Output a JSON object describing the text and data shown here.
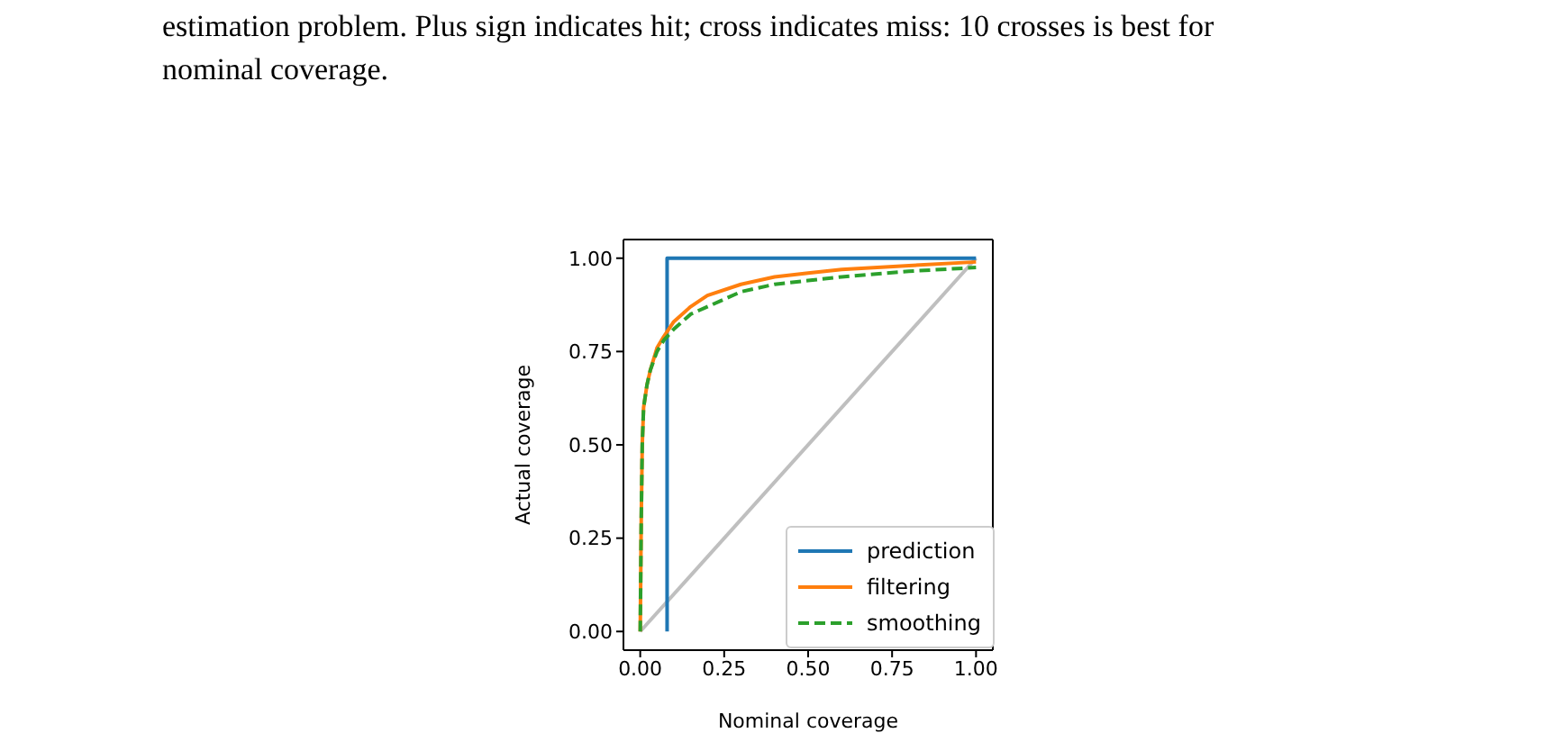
{
  "chart_data": {
    "type": "line",
    "xlabel": "Nominal coverage",
    "ylabel": "Actual coverage",
    "annotations": [
      "estimation problem. Plus sign indicates hit; cross indicates miss: 10 crosses is best for",
      "nominal coverage."
    ],
    "xlim": [
      -0.05,
      1.05
    ],
    "ylim": [
      -0.05,
      1.05
    ],
    "xticks": [
      {
        "value": 0,
        "label": "0.00"
      },
      {
        "value": 0.25,
        "label": "0.25"
      },
      {
        "value": 0.5,
        "label": "0.50"
      },
      {
        "value": 0.75,
        "label": "0.75"
      },
      {
        "value": 1,
        "label": "1.00"
      }
    ],
    "yticks": [
      {
        "value": 0,
        "label": "0.00"
      },
      {
        "value": 0.25,
        "label": "0.25"
      },
      {
        "value": 0.5,
        "label": "0.50"
      },
      {
        "value": 0.75,
        "label": "0.75"
      },
      {
        "value": 1,
        "label": "1.00"
      }
    ],
    "legend": "bottom right",
    "marker": "none",
    "series": [
      {
        "color": "#bfbfbf",
        "x": [
          0,
          1
        ],
        "values": [
          0,
          1
        ]
      },
      {
        "name": "prediction",
        "color": "#1f77b4",
        "x": [
          0.08,
          0.08,
          1
        ],
        "values": [
          0,
          1,
          1
        ]
      },
      {
        "name": "filtering",
        "color": "#ff7f0e",
        "x": [
          0,
          0.003,
          0.006,
          0.01,
          0.02,
          0.03,
          0.05,
          0.07,
          0.1,
          0.15,
          0.2,
          0.3,
          0.4,
          0.5,
          0.6,
          0.8,
          1
        ],
        "values": [
          0,
          0.3,
          0.5,
          0.6,
          0.66,
          0.7,
          0.76,
          0.79,
          0.83,
          0.87,
          0.9,
          0.93,
          0.95,
          0.96,
          0.97,
          0.98,
          0.99
        ]
      },
      {
        "name": "smoothing",
        "color": "#2ca02c",
        "line_style": "dashed",
        "x": [
          0,
          0.003,
          0.006,
          0.01,
          0.02,
          0.03,
          0.05,
          0.07,
          0.1,
          0.15,
          0.2,
          0.3,
          0.4,
          0.5,
          0.6,
          0.8,
          1
        ],
        "values": [
          0,
          0.3,
          0.5,
          0.6,
          0.66,
          0.7,
          0.75,
          0.78,
          0.81,
          0.85,
          0.87,
          0.91,
          0.93,
          0.94,
          0.95,
          0.965,
          0.975
        ]
      }
    ]
  }
}
